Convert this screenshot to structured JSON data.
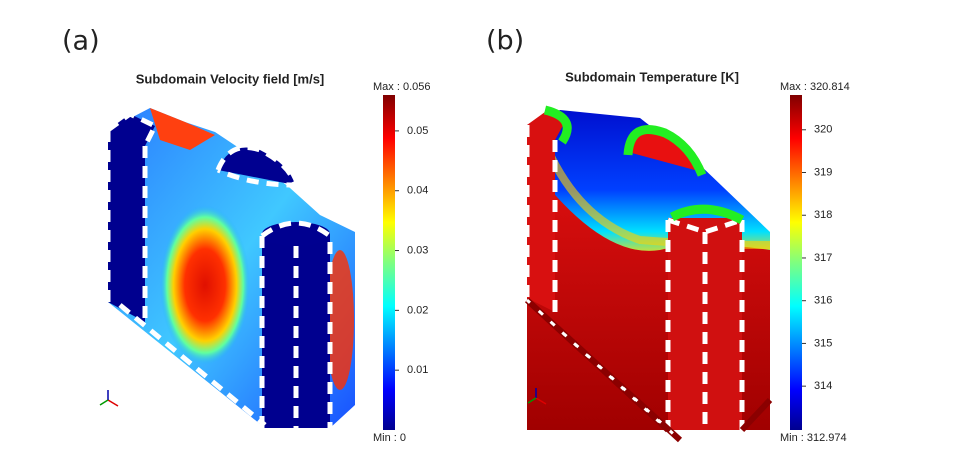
{
  "panels": [
    {
      "label": "(a)",
      "title": "Subdomain Velocity field [m/s]",
      "colorbar": {
        "max": {
          "value": 0.056,
          "label": "Max : 0.056"
        },
        "min": {
          "value": 0,
          "label": "Min : 0"
        },
        "ticks": [
          0.05,
          0.04,
          0.03,
          0.02,
          0.01
        ]
      }
    },
    {
      "label": "(b)",
      "title": "Subdomain Temperature [K]",
      "colorbar": {
        "max": {
          "value": 320.814,
          "label": "Max : 320.814"
        },
        "min": {
          "value": 312.974,
          "label": "Min : 312.974"
        },
        "ticks": [
          320,
          319,
          318,
          317,
          316,
          315,
          314
        ]
      }
    }
  ]
}
